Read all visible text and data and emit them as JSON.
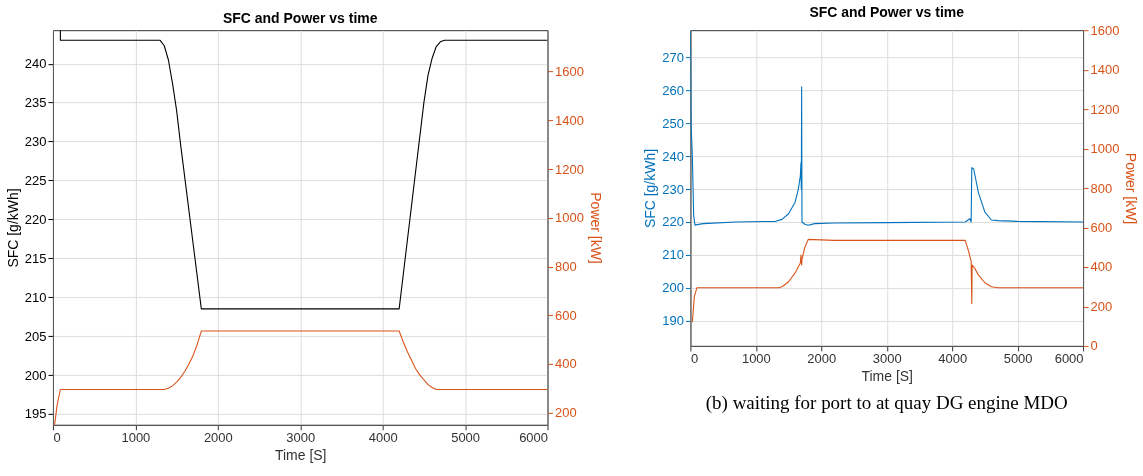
{
  "chart_data": [
    {
      "type": "line",
      "title": "SFC and Power vs time",
      "xlabel": "Time [S]",
      "ylabel": "SFC [g/kWh]",
      "y2label": "Power [kW]",
      "xlim": [
        0,
        6000
      ],
      "xticks": [
        0,
        1000,
        2000,
        3000,
        4000,
        5000,
        6000
      ],
      "ylim": [
        193.6,
        244.3
      ],
      "yticks": [
        195,
        200,
        205,
        210,
        215,
        220,
        225,
        230,
        235,
        240
      ],
      "y2lim": [
        150,
        1770
      ],
      "y2ticks": [
        200,
        400,
        600,
        800,
        1000,
        1200,
        1400,
        1600
      ],
      "grid": true,
      "series": [
        {
          "color": "#000000",
          "x": [
            90,
            90,
            1300,
            1350,
            1400,
            1450,
            1500,
            1550,
            1800,
            4200,
            4500,
            4550,
            4600,
            4650,
            4700,
            4750,
            6000
          ],
          "values": [
            244.3,
            243,
            243,
            242.3,
            240.5,
            237.5,
            234,
            229.5,
            208.5,
            208.5,
            235,
            238.5,
            240.7,
            242.2,
            242.8,
            243,
            243
          ]
        },
        {
          "color": "#d95319",
          "axis": "y2",
          "x": [
            20,
            50,
            90,
            1350,
            1400,
            1450,
            1500,
            1550,
            1600,
            1650,
            1700,
            1750,
            1800,
            4200,
            4250,
            4300,
            4350,
            4400,
            4450,
            4500,
            4550,
            4600,
            4650,
            6000
          ],
          "values": [
            150,
            230,
            295,
            295,
            300,
            310,
            325,
            345,
            370,
            400,
            435,
            480,
            535,
            535,
            490,
            450,
            415,
            380,
            355,
            335,
            315,
            303,
            295,
            295
          ]
        }
      ]
    },
    {
      "type": "line",
      "title": "SFC and Power vs time",
      "xlabel": "Time [S]",
      "ylabel": "SFC [g/kWh]",
      "y2label": "Power [kW]",
      "xlim": [
        0,
        6000
      ],
      "xticks": [
        0,
        1000,
        2000,
        3000,
        4000,
        5000,
        6000
      ],
      "ylim": [
        182.4,
        278.2
      ],
      "yticks": [
        190,
        200,
        210,
        220,
        230,
        240,
        250,
        260,
        270
      ],
      "y2lim": [
        0,
        1600
      ],
      "y2ticks": [
        0,
        200,
        400,
        600,
        800,
        1000,
        1200,
        1400,
        1600
      ],
      "grid": true,
      "annotations": [
        "(b) waiting for port to at quay DG engine MDO"
      ],
      "series": [
        {
          "color": "#0072bd",
          "x": [
            0,
            10,
            30,
            50,
            70,
            100,
            200,
            700,
            1300,
            1400,
            1500,
            1600,
            1650,
            1680,
            1690,
            1695,
            1700,
            1705,
            1750,
            1800,
            1900,
            2200,
            3000,
            4200,
            4270,
            4290,
            4300,
            4330,
            4400,
            4500,
            4600,
            4700,
            5000,
            6000
          ],
          "values": [
            278.2,
            250,
            240,
            222,
            219,
            219.2,
            219.5,
            220,
            220.2,
            220.8,
            222.5,
            226,
            230,
            234,
            238,
            230,
            261,
            220,
            219.3,
            219,
            219.5,
            219.7,
            219.8,
            220,
            221,
            220,
            236.5,
            236,
            229,
            223,
            220.6,
            220.4,
            220.2,
            220
          ]
        },
        {
          "color": "#d95319",
          "axis": "y2",
          "x": [
            30,
            60,
            100,
            1350,
            1400,
            1500,
            1600,
            1680,
            1690,
            1700,
            1705,
            1750,
            1800,
            2200,
            4200,
            4250,
            4290,
            4300,
            4305,
            4350,
            4400,
            4500,
            4600,
            4700,
            6000
          ],
          "values": [
            120,
            250,
            295,
            295,
            300,
            325,
            370,
            420,
            460,
            410,
            440,
            500,
            540,
            535,
            535,
            480,
            430,
            215,
            410,
            390,
            360,
            320,
            300,
            295,
            295
          ]
        }
      ]
    }
  ]
}
